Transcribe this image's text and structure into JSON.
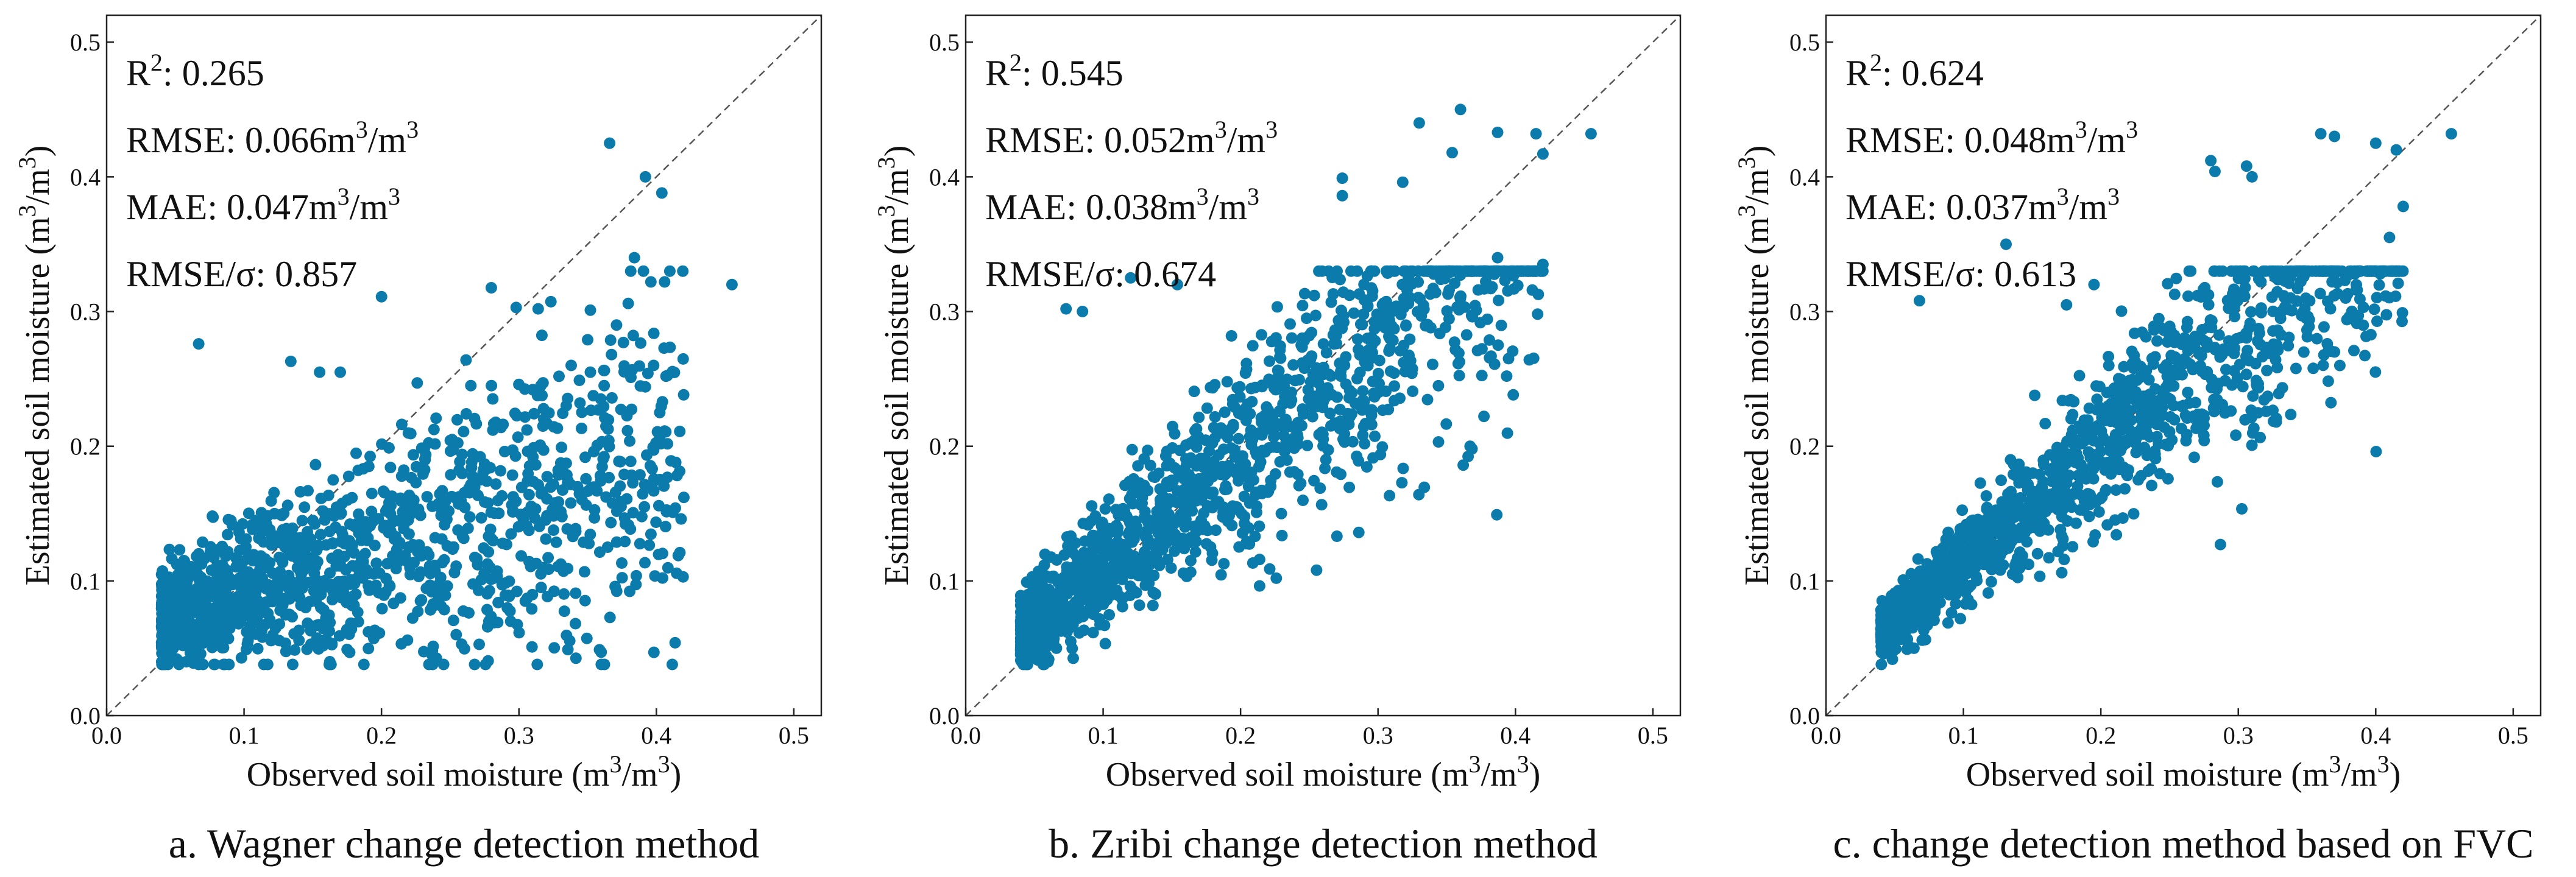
{
  "chart_data": [
    {
      "type": "scatter",
      "panel_id": "a",
      "caption": "a. Wagner change detection method",
      "xlabel": "Observed soil moisture (m3/m3)",
      "ylabel": "Estimated soil moisture (m3/m3)",
      "xlim": [
        0.0,
        0.52
      ],
      "ylim": [
        0.0,
        0.52
      ],
      "xticks": [
        "0.0",
        "0.1",
        "0.2",
        "0.3",
        "0.4",
        "0.5"
      ],
      "yticks": [
        "0.0",
        "0.1",
        "0.2",
        "0.3",
        "0.4",
        "0.5"
      ],
      "identity_line": true,
      "color": "#0b7bac",
      "stats": {
        "r2": "0.265",
        "rmse": "0.066",
        "mae": "0.047",
        "rmse_sigma": "0.857"
      },
      "approx_point_count": 1400,
      "points": [
        [
          0.366,
          0.425
        ],
        [
          0.392,
          0.4
        ],
        [
          0.404,
          0.388
        ],
        [
          0.455,
          0.32
        ],
        [
          0.384,
          0.34
        ],
        [
          0.396,
          0.322
        ],
        [
          0.406,
          0.322
        ],
        [
          0.2,
          0.311
        ],
        [
          0.298,
          0.303
        ],
        [
          0.314,
          0.302
        ],
        [
          0.352,
          0.301
        ],
        [
          0.371,
          0.29
        ],
        [
          0.376,
          0.277
        ],
        [
          0.067,
          0.276
        ],
        [
          0.407,
          0.252
        ],
        [
          0.398,
          0.26
        ],
        [
          0.417,
          0.211
        ],
        [
          0.42,
          0.162
        ],
        [
          0.418,
          0.146
        ],
        [
          0.282,
          0.069
        ],
        [
          0.294,
          0.07
        ],
        [
          0.237,
          0.048
        ],
        [
          0.047,
          0.048
        ],
        [
          0.051,
          0.042
        ],
        [
          0.058,
          0.04
        ],
        [
          0.134,
          0.263
        ],
        [
          0.155,
          0.255
        ],
        [
          0.17,
          0.255
        ],
        [
          0.226,
          0.247
        ],
        [
          0.265,
          0.245
        ],
        [
          0.28,
          0.245
        ],
        [
          0.31,
          0.242
        ],
        [
          0.338,
          0.26
        ],
        [
          0.352,
          0.255
        ],
        [
          0.362,
          0.245
        ]
      ]
    },
    {
      "type": "scatter",
      "panel_id": "b",
      "caption": "b. Zribi change detection method",
      "xlabel": "Observed soil moisture (m3/m3)",
      "ylabel": "Estimated soil moisture (m3/m3)",
      "xlim": [
        0.0,
        0.52
      ],
      "ylim": [
        0.0,
        0.52
      ],
      "xticks": [
        "0.0",
        "0.1",
        "0.2",
        "0.3",
        "0.4",
        "0.5"
      ],
      "yticks": [
        "0.0",
        "0.1",
        "0.2",
        "0.3",
        "0.4",
        "0.5"
      ],
      "identity_line": true,
      "color": "#0b7bac",
      "stats": {
        "r2": "0.545",
        "rmse": "0.052",
        "mae": "0.038",
        "rmse_sigma": "0.674"
      },
      "approx_point_count": 1500,
      "points": [
        [
          0.36,
          0.45
        ],
        [
          0.455,
          0.432
        ],
        [
          0.33,
          0.44
        ],
        [
          0.387,
          0.433
        ],
        [
          0.415,
          0.432
        ],
        [
          0.42,
          0.417
        ],
        [
          0.354,
          0.418
        ],
        [
          0.274,
          0.399
        ],
        [
          0.274,
          0.386
        ],
        [
          0.318,
          0.396
        ],
        [
          0.387,
          0.34
        ],
        [
          0.42,
          0.335
        ],
        [
          0.395,
          0.265
        ],
        [
          0.367,
          0.2
        ],
        [
          0.362,
          0.186
        ],
        [
          0.286,
          0.136
        ],
        [
          0.226,
          0.102
        ],
        [
          0.073,
          0.302
        ],
        [
          0.085,
          0.3
        ],
        [
          0.12,
          0.325
        ],
        [
          0.154,
          0.32
        ],
        [
          0.056,
          0.042
        ],
        [
          0.06,
          0.04
        ],
        [
          0.066,
          0.05
        ]
      ]
    },
    {
      "type": "scatter",
      "panel_id": "c",
      "caption": "c. change detection method based on FVC",
      "xlabel": "Observed soil moisture (m3/m3)",
      "ylabel": "Estimated soil moisture (m3/m3)",
      "xlim": [
        0.0,
        0.52
      ],
      "ylim": [
        0.0,
        0.52
      ],
      "xticks": [
        "0.0",
        "0.1",
        "0.2",
        "0.3",
        "0.4",
        "0.5"
      ],
      "yticks": [
        "0.0",
        "0.1",
        "0.2",
        "0.3",
        "0.4",
        "0.5"
      ],
      "identity_line": true,
      "color": "#0b7bac",
      "stats": {
        "r2": "0.624",
        "rmse": "0.048",
        "mae": "0.037",
        "rmse_sigma": "0.613"
      },
      "approx_point_count": 1500,
      "points": [
        [
          0.455,
          0.432
        ],
        [
          0.36,
          0.432
        ],
        [
          0.37,
          0.43
        ],
        [
          0.4,
          0.425
        ],
        [
          0.415,
          0.42
        ],
        [
          0.28,
          0.412
        ],
        [
          0.283,
          0.404
        ],
        [
          0.31,
          0.4
        ],
        [
          0.306,
          0.408
        ],
        [
          0.42,
          0.378
        ],
        [
          0.41,
          0.355
        ],
        [
          0.37,
          0.27
        ],
        [
          0.338,
          0.31
        ],
        [
          0.287,
          0.127
        ],
        [
          0.195,
          0.32
        ],
        [
          0.175,
          0.305
        ],
        [
          0.131,
          0.35
        ],
        [
          0.068,
          0.308
        ],
        [
          0.06,
          0.052
        ],
        [
          0.064,
          0.05
        ],
        [
          0.07,
          0.056
        ]
      ]
    }
  ]
}
